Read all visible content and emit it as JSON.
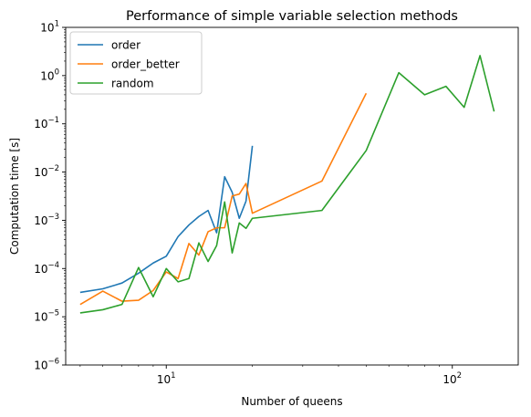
{
  "chart_data": {
    "type": "line",
    "title": "Performance of simple variable selection methods",
    "xlabel": "Number of queens",
    "ylabel": "Computation time [s]",
    "xscale": "log",
    "yscale": "log",
    "xlim": [
      4.45,
      170
    ],
    "ylim": [
      1e-06,
      10
    ],
    "x_ticks": [
      {
        "value": 10,
        "base": "10",
        "exp": "1"
      },
      {
        "value": 100,
        "base": "10",
        "exp": "2"
      }
    ],
    "y_ticks": [
      {
        "value": 1e-06,
        "base": "10",
        "exp": "−6"
      },
      {
        "value": 1e-05,
        "base": "10",
        "exp": "−5"
      },
      {
        "value": 0.0001,
        "base": "10",
        "exp": "−4"
      },
      {
        "value": 0.001,
        "base": "10",
        "exp": "−3"
      },
      {
        "value": 0.01,
        "base": "10",
        "exp": "−2"
      },
      {
        "value": 0.1,
        "base": "10",
        "exp": "−1"
      },
      {
        "value": 1,
        "base": "10",
        "exp": "0"
      },
      {
        "value": 10,
        "base": "10",
        "exp": "1"
      }
    ],
    "grid": false,
    "legend_position": "top-left",
    "series": [
      {
        "name": "order",
        "color": "#1f77b4",
        "x": [
          5,
          6,
          7,
          8,
          9,
          10,
          11,
          12,
          13,
          14,
          15,
          16,
          17,
          18,
          19,
          20
        ],
        "y": [
          3.2e-05,
          3.8e-05,
          5e-05,
          8e-05,
          0.00013,
          0.00018,
          0.00046,
          0.0008,
          0.0012,
          0.0016,
          0.00055,
          0.008,
          0.0038,
          0.0011,
          0.0025,
          0.035
        ]
      },
      {
        "name": "order_better",
        "color": "#ff7f0e",
        "x": [
          5,
          6,
          7,
          8,
          9,
          10,
          11,
          12,
          13,
          14,
          15,
          16,
          17,
          18,
          19,
          20,
          35,
          50
        ],
        "y": [
          1.8e-05,
          3.4e-05,
          2.1e-05,
          2.2e-05,
          3.5e-05,
          8.5e-05,
          6.2e-05,
          0.00033,
          0.00019,
          0.00058,
          0.0007,
          0.0007,
          0.0032,
          0.0035,
          0.0058,
          0.0014,
          0.0065,
          0.43
        ]
      },
      {
        "name": "random",
        "color": "#2ca02c",
        "x": [
          5,
          6,
          7,
          8,
          9,
          10,
          11,
          12,
          13,
          14,
          15,
          16,
          17,
          18,
          19,
          20,
          35,
          50,
          65,
          80,
          95,
          110,
          125,
          140
        ],
        "y": [
          1.2e-05,
          1.4e-05,
          1.8e-05,
          0.000105,
          2.6e-05,
          0.0001,
          5.3e-05,
          6.2e-05,
          0.00034,
          0.00014,
          0.0003,
          0.0024,
          0.00021,
          0.00088,
          0.00068,
          0.0011,
          0.0016,
          0.028,
          1.15,
          0.4,
          0.6,
          0.22,
          2.6,
          0.18
        ]
      }
    ]
  }
}
